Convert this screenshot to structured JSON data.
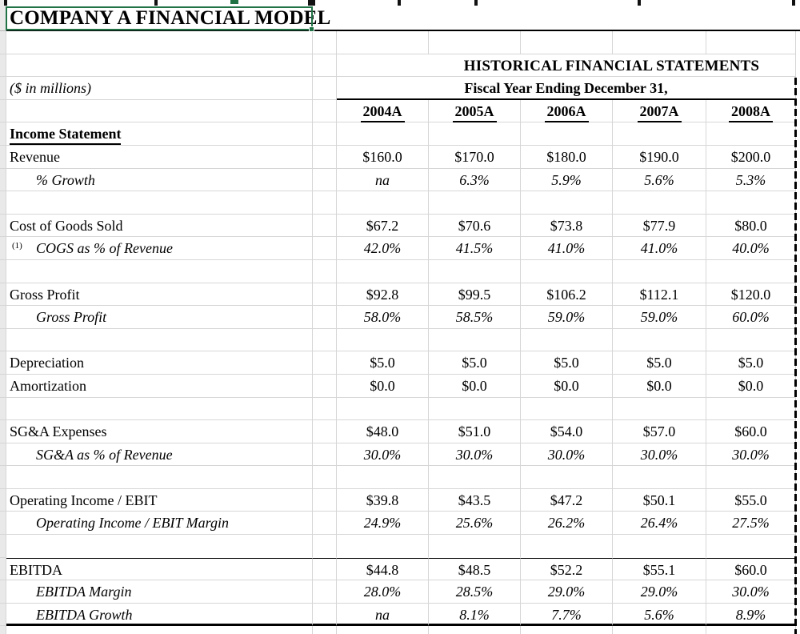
{
  "title": "COMPANY A FINANCIAL MODEL",
  "table": {
    "section_header": "HISTORICAL FINANCIAL STATEMENTS",
    "units_note": "($ in millions)",
    "period_header": "Fiscal Year Ending December 31,",
    "years": [
      "2004A",
      "2005A",
      "2006A",
      "2007A",
      "2008A"
    ],
    "rows": [
      {
        "type": "section",
        "label": "Income Statement",
        "values": [
          "",
          "",
          "",
          "",
          ""
        ]
      },
      {
        "type": "data",
        "style": "main",
        "label": "Revenue",
        "values": [
          "$160.0",
          "$170.0",
          "$180.0",
          "$190.0",
          "$200.0"
        ]
      },
      {
        "type": "data",
        "style": "sub",
        "label": "% Growth",
        "values": [
          "na",
          "6.3%",
          "5.9%",
          "5.6%",
          "5.3%"
        ]
      },
      {
        "type": "blank",
        "label": "",
        "values": [
          "",
          "",
          "",
          "",
          ""
        ]
      },
      {
        "type": "data",
        "style": "main",
        "label": "Cost of Goods Sold",
        "sup": "(1)",
        "values": [
          "$67.2",
          "$70.6",
          "$73.8",
          "$77.9",
          "$80.0"
        ]
      },
      {
        "type": "data",
        "style": "sub",
        "label": "COGS as % of Revenue",
        "values": [
          "42.0%",
          "41.5%",
          "41.0%",
          "41.0%",
          "40.0%"
        ]
      },
      {
        "type": "blank",
        "label": "",
        "values": [
          "",
          "",
          "",
          "",
          ""
        ]
      },
      {
        "type": "data",
        "style": "main",
        "label": "Gross Profit",
        "values": [
          "$92.8",
          "$99.5",
          "$106.2",
          "$112.1",
          "$120.0"
        ]
      },
      {
        "type": "data",
        "style": "sub",
        "label": "Gross Profit",
        "values": [
          "58.0%",
          "58.5%",
          "59.0%",
          "59.0%",
          "60.0%"
        ]
      },
      {
        "type": "blank",
        "label": "",
        "values": [
          "",
          "",
          "",
          "",
          ""
        ]
      },
      {
        "type": "data",
        "style": "main",
        "label": "Depreciation",
        "values": [
          "$5.0",
          "$5.0",
          "$5.0",
          "$5.0",
          "$5.0"
        ]
      },
      {
        "type": "data",
        "style": "main",
        "label": "Amortization",
        "values": [
          "$0.0",
          "$0.0",
          "$0.0",
          "$0.0",
          "$0.0"
        ]
      },
      {
        "type": "blank",
        "label": "",
        "values": [
          "",
          "",
          "",
          "",
          ""
        ]
      },
      {
        "type": "data",
        "style": "main",
        "label": "SG&A Expenses",
        "values": [
          "$48.0",
          "$51.0",
          "$54.0",
          "$57.0",
          "$60.0"
        ]
      },
      {
        "type": "data",
        "style": "sub",
        "label": "SG&A as % of Revenue",
        "values": [
          "30.0%",
          "30.0%",
          "30.0%",
          "30.0%",
          "30.0%"
        ]
      },
      {
        "type": "blank",
        "label": "",
        "values": [
          "",
          "",
          "",
          "",
          ""
        ]
      },
      {
        "type": "data",
        "style": "main",
        "label": "Operating Income / EBIT",
        "values": [
          "$39.8",
          "$43.5",
          "$47.2",
          "$50.1",
          "$55.0"
        ]
      },
      {
        "type": "data",
        "style": "sub",
        "label": "Operating Income / EBIT Margin",
        "values": [
          "24.9%",
          "25.6%",
          "26.2%",
          "26.4%",
          "27.5%"
        ]
      },
      {
        "type": "blank",
        "pre_border": true,
        "label": "",
        "values": [
          "",
          "",
          "",
          "",
          ""
        ]
      },
      {
        "type": "data",
        "style": "main",
        "top_border": true,
        "label": "EBITDA",
        "values": [
          "$44.8",
          "$48.5",
          "$52.2",
          "$55.1",
          "$60.0"
        ]
      },
      {
        "type": "data",
        "style": "sub",
        "label": "EBITDA Margin",
        "values": [
          "28.0%",
          "28.5%",
          "29.0%",
          "29.0%",
          "30.0%"
        ]
      },
      {
        "type": "data",
        "style": "sub",
        "bottom_border": true,
        "label": "EBITDA Growth",
        "values": [
          "na",
          "8.1%",
          "7.7%",
          "5.6%",
          "8.9%"
        ]
      }
    ]
  },
  "colors": {
    "selection_green": "#217346",
    "gridline": "#d6d6d6",
    "row_header_bg": "#e9e9e9",
    "border_black": "#000000"
  }
}
